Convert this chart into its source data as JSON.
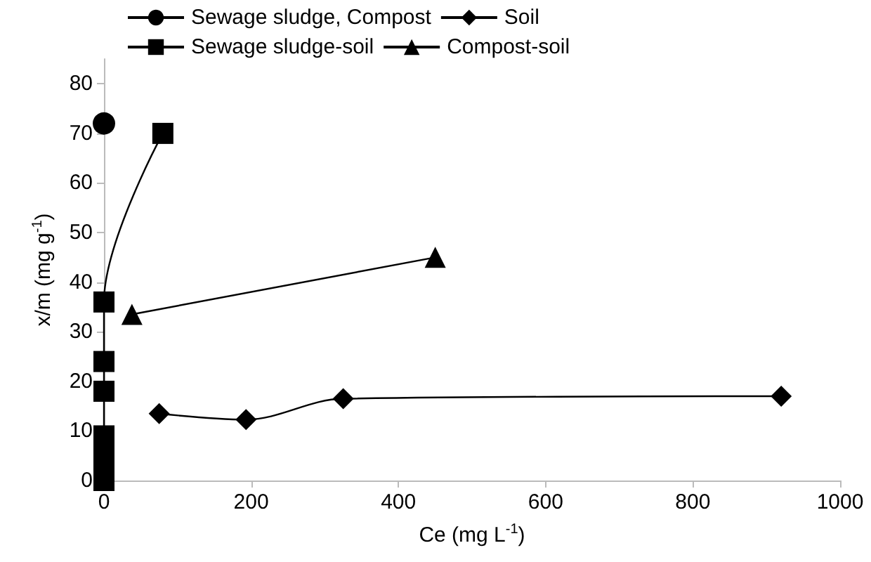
{
  "chart_data": {
    "type": "line",
    "xlabel": "Ce (mg L$^{-1}$)",
    "ylabel": "x/m (mg g$^{-1}$)",
    "xlim": [
      0,
      1000
    ],
    "xticks": [
      0,
      200,
      400,
      600,
      800,
      1000
    ],
    "ylim": [
      0,
      85
    ],
    "yticks": [
      0,
      10,
      20,
      30,
      40,
      50,
      60,
      70,
      80
    ],
    "grid": false,
    "legend": "top",
    "line_style": "solid",
    "series": [
      {
        "name": "Sewage sludge, Compost",
        "color": "#000000",
        "marker": "circle",
        "x": [
          0
        ],
        "values": [
          72
        ]
      },
      {
        "name": "Soil",
        "color": "#000000",
        "marker": "diamond",
        "x": [
          75,
          193,
          325,
          920
        ],
        "values": [
          13.5,
          12.3,
          16.5,
          17
        ]
      },
      {
        "name": "Sewage sludge-soil",
        "color": "#000000",
        "marker": "square",
        "x": [
          0,
          0,
          0,
          0,
          0,
          0,
          0,
          80
        ],
        "values": [
          0,
          2,
          5,
          9,
          18,
          24,
          36,
          70
        ]
      },
      {
        "name": "Compost-soil",
        "color": "#000000",
        "marker": "triangle",
        "x": [
          38,
          450
        ],
        "values": [
          33.5,
          45
        ]
      }
    ]
  }
}
